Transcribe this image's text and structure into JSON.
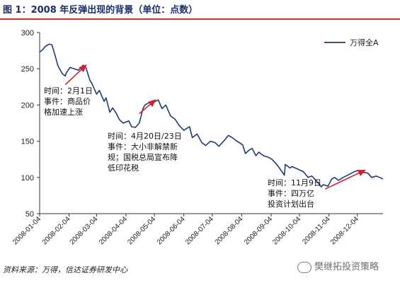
{
  "title": "图 1：2008 年反弹出现的背景（单位：点数）",
  "source": "资料来源：万得，信达证券研发中心",
  "watermark": "樊继拓投资策略",
  "colors": {
    "line": "#1f3a7a",
    "arrow": "#d0202b",
    "title": "#1a2f6b",
    "rule": "#c0392b"
  },
  "chart_data": {
    "type": "line",
    "title": "",
    "xlabel": "",
    "ylabel": "",
    "ylim": [
      50,
      300
    ],
    "yticks": [
      50,
      100,
      150,
      200,
      250,
      300
    ],
    "xlim": [
      "2008-01-04",
      "2008-12-31"
    ],
    "xticks": [
      "2008-01-04",
      "2008-02-04",
      "2008-03-04",
      "2008-04-04",
      "2008-05-04",
      "2008-06-04",
      "2008-07-04",
      "2008-08-04",
      "2008-09-04",
      "2008-10-04",
      "2008-11-04",
      "2008-12-04"
    ],
    "legend": {
      "position": "top-right",
      "entries": [
        "万得全A"
      ]
    },
    "series": [
      {
        "name": "万得全A",
        "x": [
          "2008-01-04",
          "2008-01-07",
          "2008-01-10",
          "2008-01-14",
          "2008-01-17",
          "2008-01-21",
          "2008-01-23",
          "2008-01-25",
          "2008-01-28",
          "2008-01-31",
          "2008-02-01",
          "2008-02-05",
          "2008-02-14",
          "2008-02-19",
          "2008-02-22",
          "2008-02-26",
          "2008-02-28",
          "2008-03-04",
          "2008-03-07",
          "2008-03-12",
          "2008-03-14",
          "2008-03-18",
          "2008-03-21",
          "2008-03-25",
          "2008-03-28",
          "2008-04-01",
          "2008-04-07",
          "2008-04-10",
          "2008-04-14",
          "2008-04-18",
          "2008-04-22",
          "2008-04-24",
          "2008-04-28",
          "2008-05-05",
          "2008-05-08",
          "2008-05-12",
          "2008-05-16",
          "2008-05-21",
          "2008-05-26",
          "2008-05-30",
          "2008-06-04",
          "2008-06-10",
          "2008-06-13",
          "2008-06-18",
          "2008-06-23",
          "2008-06-27",
          "2008-07-02",
          "2008-07-07",
          "2008-07-11",
          "2008-07-16",
          "2008-07-21",
          "2008-07-25",
          "2008-07-30",
          "2008-08-05",
          "2008-08-08",
          "2008-08-12",
          "2008-08-15",
          "2008-08-19",
          "2008-08-22",
          "2008-08-27",
          "2008-09-01",
          "2008-09-05",
          "2008-09-10",
          "2008-09-16",
          "2008-09-18",
          "2008-09-19",
          "2008-09-24",
          "2008-09-26",
          "2008-10-08",
          "2008-10-13",
          "2008-10-17",
          "2008-10-22",
          "2008-10-27",
          "2008-10-29",
          "2008-11-03",
          "2008-11-07",
          "2008-11-10",
          "2008-11-14",
          "2008-11-19",
          "2008-11-25",
          "2008-12-01",
          "2008-12-05",
          "2008-12-10",
          "2008-12-15",
          "2008-12-19",
          "2008-12-24",
          "2008-12-31"
        ],
        "y": [
          273,
          276,
          281,
          284,
          283,
          265,
          255,
          250,
          243,
          240,
          244,
          252,
          248,
          255,
          251,
          234,
          230,
          215,
          220,
          205,
          210,
          190,
          196,
          188,
          180,
          175,
          178,
          170,
          169,
          175,
          195,
          200,
          203,
          205,
          207,
          195,
          200,
          185,
          180,
          172,
          165,
          170,
          155,
          160,
          148,
          144,
          150,
          148,
          143,
          150,
          158,
          155,
          150,
          145,
          133,
          138,
          140,
          130,
          135,
          130,
          128,
          125,
          118,
          107,
          103,
          118,
          113,
          115,
          108,
          100,
          102,
          95,
          87,
          90,
          88,
          98,
          100,
          96,
          100,
          104,
          108,
          110,
          107,
          106,
          100,
          102,
          98
        ]
      }
    ],
    "annotations": [
      {
        "text": [
          "时间：2月1日",
          "事件：商品价",
          "格加速上涨"
        ]
      },
      {
        "text": [
          "时间：4月20日/23日",
          "事件：大小非解禁新",
          "规；国税总局宣布降",
          "低印花税"
        ]
      },
      {
        "text": [
          "时间：11月9日",
          "事件：四万亿",
          "投资计划出台"
        ]
      }
    ],
    "arrows": [
      {
        "from": [
          "2008-01-31",
          228
        ],
        "to": [
          "2008-02-22",
          255
        ]
      },
      {
        "from": [
          "2008-04-18",
          188
        ],
        "to": [
          "2008-05-05",
          207
        ]
      },
      {
        "from": [
          "2008-10-31",
          84
        ],
        "to": [
          "2008-12-12",
          110
        ]
      }
    ]
  }
}
